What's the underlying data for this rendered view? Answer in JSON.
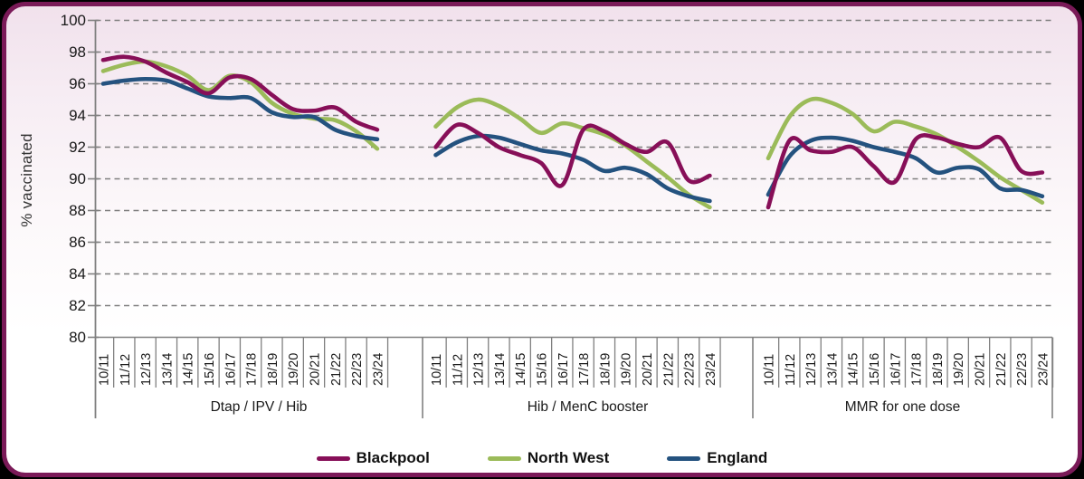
{
  "chart_data": {
    "type": "line",
    "title": "",
    "ylabel": "% vaccinated",
    "xlabel": "",
    "ylim": [
      80,
      100
    ],
    "ytick_interval": 2,
    "yticks": [
      100,
      98,
      96,
      94,
      92,
      90,
      88,
      86,
      84,
      82,
      80
    ],
    "grid": "horizontal-dashed",
    "legend_position": "bottom",
    "line_style": "smooth",
    "categories": [
      "10/11",
      "11/12",
      "12/13",
      "13/14",
      "14/15",
      "15/16",
      "16/17",
      "17/18",
      "18/19",
      "19/20",
      "20/21",
      "21/22",
      "22/23",
      "23/24"
    ],
    "series_meta": [
      {
        "name": "Blackpool",
        "color": "#870F58"
      },
      {
        "name": "North West",
        "color": "#9BBB59"
      },
      {
        "name": "England",
        "color": "#24527F"
      }
    ],
    "panels": [
      {
        "label": "Dtap / IPV / Hib",
        "series": [
          {
            "name": "Blackpool",
            "values": [
              97.5,
              97.7,
              97.4,
              96.7,
              96.1,
              95.4,
              96.4,
              96.3,
              95.3,
              94.4,
              94.3,
              94.5,
              93.6,
              93.1
            ]
          },
          {
            "name": "North West",
            "values": [
              96.8,
              97.2,
              97.4,
              97.1,
              96.5,
              95.6,
              96.5,
              96.1,
              94.8,
              94.1,
              93.8,
              93.7,
              93.0,
              91.9
            ]
          },
          {
            "name": "England",
            "values": [
              96.0,
              96.2,
              96.3,
              96.2,
              95.7,
              95.2,
              95.1,
              95.1,
              94.2,
              93.9,
              93.9,
              93.1,
              92.7,
              92.5
            ]
          }
        ]
      },
      {
        "label": "Hib / MenC booster",
        "series": [
          {
            "name": "Blackpool",
            "values": [
              92.0,
              93.4,
              92.9,
              92.0,
              91.5,
              91.0,
              89.6,
              93.1,
              93.0,
              92.2,
              91.7,
              92.3,
              89.9,
              90.2
            ]
          },
          {
            "name": "North West",
            "values": [
              93.3,
              94.5,
              95.0,
              94.6,
              93.8,
              92.9,
              93.5,
              93.2,
              92.8,
              92.1,
              91.1,
              90.1,
              89.0,
              88.2
            ]
          },
          {
            "name": "England",
            "values": [
              91.5,
              92.3,
              92.7,
              92.6,
              92.2,
              91.8,
              91.6,
              91.2,
              90.5,
              90.7,
              90.3,
              89.4,
              88.9,
              88.6
            ]
          }
        ]
      },
      {
        "label": "MMR for one dose",
        "series": [
          {
            "name": "Blackpool",
            "values": [
              88.2,
              92.4,
              91.8,
              91.7,
              92.0,
              90.8,
              89.8,
              92.5,
              92.6,
              92.2,
              92.0,
              92.6,
              90.5,
              90.4
            ]
          },
          {
            "name": "North West",
            "values": [
              91.3,
              93.9,
              95.0,
              94.8,
              94.1,
              93.0,
              93.6,
              93.3,
              92.8,
              92.0,
              91.1,
              90.1,
              89.3,
              88.5
            ]
          },
          {
            "name": "England",
            "values": [
              89.0,
              91.4,
              92.4,
              92.6,
              92.4,
              92.0,
              91.7,
              91.3,
              90.4,
              90.7,
              90.6,
              89.4,
              89.3,
              88.9
            ]
          }
        ]
      }
    ]
  },
  "colors": {
    "frame_border": "#7A1A58",
    "background_top": "#F1E1EC",
    "background_bottom": "#FFFFFF",
    "gridline": "#7F7F7F",
    "axis": "#808080",
    "text": "#1A1A1A"
  }
}
